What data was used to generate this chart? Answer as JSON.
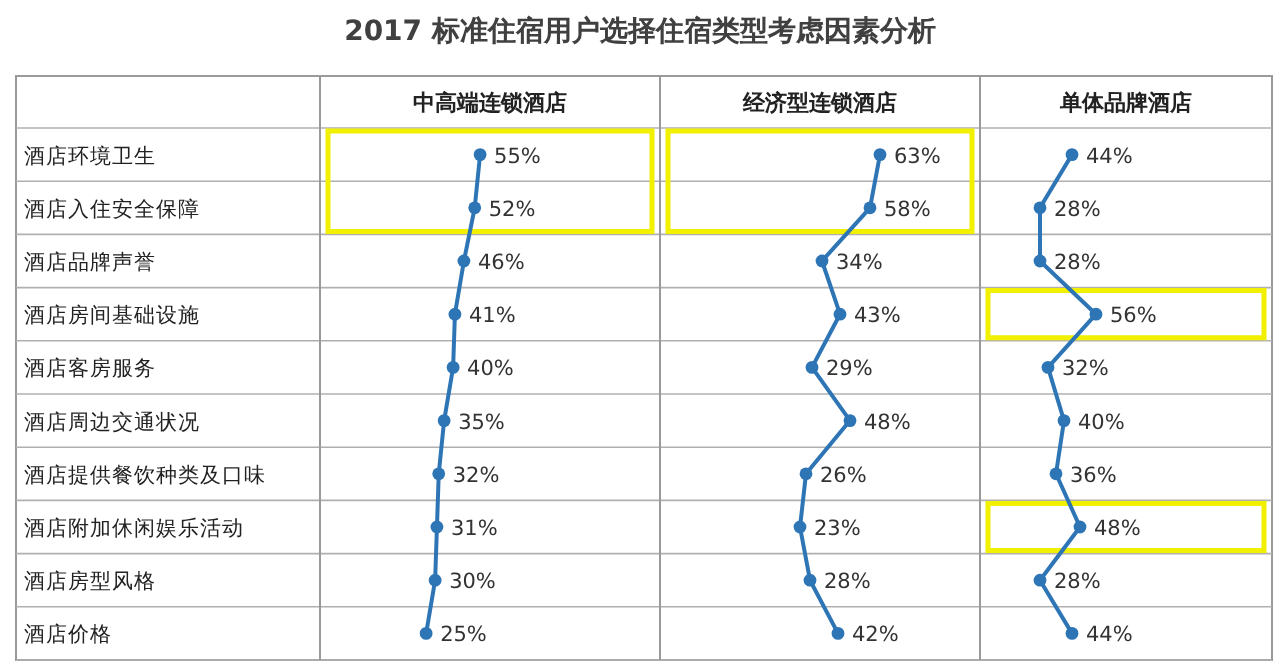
{
  "chart_data": [
    {
      "type": "other",
      "title": "2017 标准住宿用户选择住宿类型考虑因素分析"
    },
    {
      "type": "line",
      "title": "中高端连锁酒店",
      "orientation": "horizontal",
      "tick_labels": "y",
      "marker": "circle",
      "xlim": [
        -34,
        155
      ],
      "categories": [
        "酒店环境卫生",
        "酒店入住安全保障",
        "酒店品牌声誉",
        "酒店房间基础设施",
        "酒店客房服务",
        "酒店周边交通状况",
        "酒店提供餐饮种类及口味",
        "酒店附加休闲娱乐活动",
        "酒店房型风格",
        "酒店价格"
      ],
      "series": [
        {
          "color": "#2e75b6",
          "values": [
            55,
            52,
            46,
            41,
            40,
            35,
            32,
            31,
            30,
            25
          ],
          "value_labels": [
            "55%",
            "52%",
            "46%",
            "41%",
            "40%",
            "35%",
            "32%",
            "31%",
            "30%",
            "25%"
          ]
        }
      ]
    },
    {
      "type": "line",
      "title": "经济型连锁酒店",
      "orientation": "horizontal",
      "tick_labels": false,
      "marker": "circle",
      "xlim": [
        -47,
        113
      ],
      "categories": [
        null,
        null,
        null,
        null,
        null,
        null,
        null,
        null,
        null,
        null
      ],
      "series": [
        {
          "color": "#2e75b6",
          "values": [
            63,
            58,
            34,
            43,
            29,
            48,
            26,
            23,
            28,
            42
          ],
          "value_labels": [
            "63%",
            "58%",
            "34%",
            "43%",
            "29%",
            "48%",
            "26%",
            "23%",
            "28%",
            "42%"
          ]
        }
      ]
    },
    {
      "type": "line",
      "title": "单体品牌酒店",
      "orientation": "horizontal",
      "tick_labels": false,
      "marker": "circle",
      "xlim": [
        -2,
        144
      ],
      "categories": [
        null,
        null,
        null,
        null,
        null,
        null,
        null,
        null,
        null,
        null
      ],
      "series": [
        {
          "color": "#2e75b6",
          "values": [
            44,
            28,
            28,
            56,
            32,
            40,
            36,
            48,
            28,
            44
          ],
          "value_labels": [
            "44%",
            "28%",
            "28%",
            "56%",
            "32%",
            "40%",
            "36%",
            "48%",
            "28%",
            "44%"
          ]
        }
      ]
    }
  ]
}
